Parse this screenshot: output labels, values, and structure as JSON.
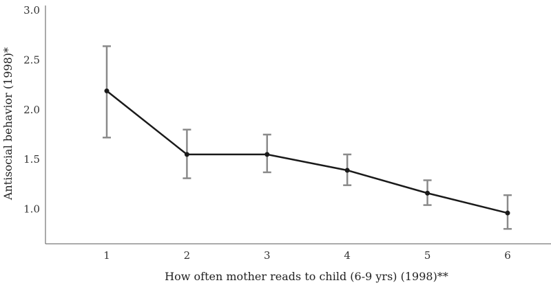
{
  "chart_data": {
    "type": "line",
    "title": "",
    "xlabel": "How often mother reads to child (6-9 yrs) (1998)**",
    "ylabel": "Antisocial behavior (1998)*",
    "categories": [
      "1",
      "2",
      "3",
      "4",
      "5",
      "6"
    ],
    "series": [
      {
        "values": [
          2.19,
          1.55,
          1.55,
          1.39,
          1.16,
          0.96
        ],
        "error_low": [
          1.72,
          1.31,
          1.37,
          1.24,
          1.04,
          0.8
        ],
        "error_high": [
          2.64,
          1.8,
          1.75,
          1.55,
          1.29,
          1.14
        ]
      }
    ],
    "yticks": [
      "1.0",
      "1.5",
      "2.0",
      "2.5",
      "3.0"
    ],
    "ylim": [
      0.65,
      3.05
    ],
    "grid": false,
    "line_color": "#1a1a1a",
    "errorbar_color": "#8a8a8a",
    "axis_color": "#555555"
  }
}
